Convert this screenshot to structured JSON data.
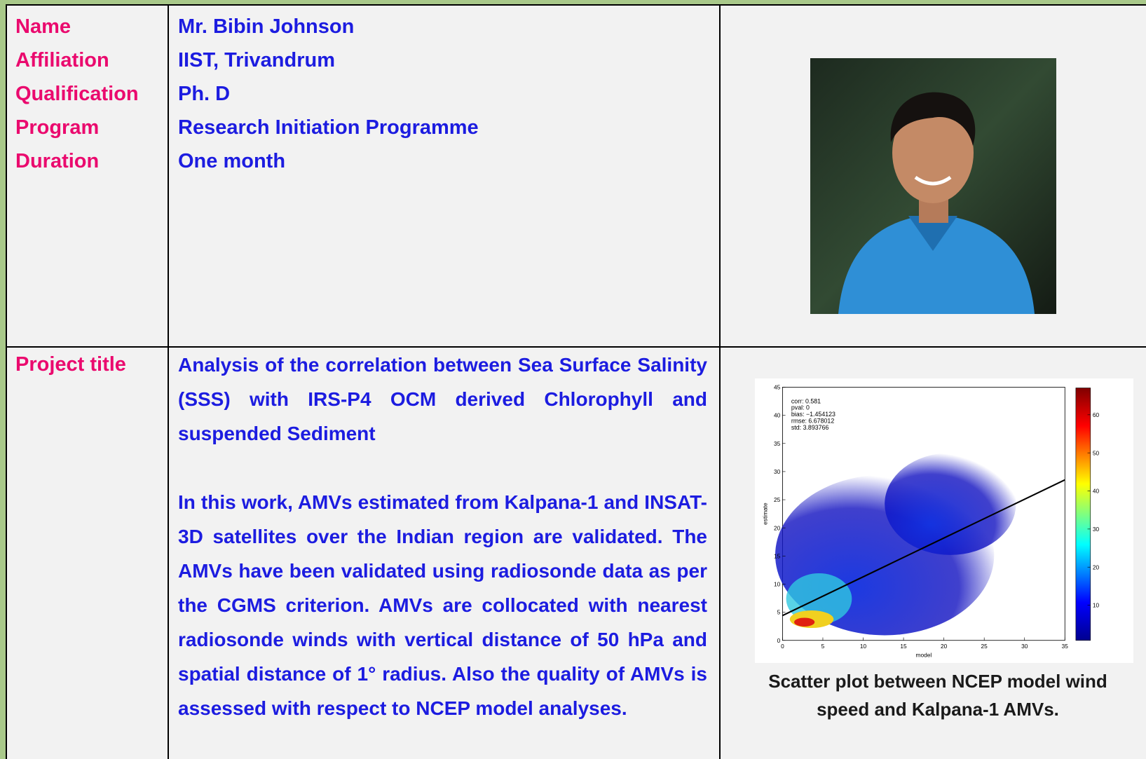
{
  "profile": {
    "labels": [
      "Name",
      "Affiliation",
      "Qualification",
      "Program",
      "Duration"
    ],
    "values": [
      "Mr. Bibin Johnson",
      "IIST, Trivandrum",
      "Ph. D",
      "Research Initiation Programme",
      "One month"
    ]
  },
  "project": {
    "label": "Project title",
    "title": "Analysis of the correlation between Sea Surface Salinity (SSS) with IRS-P4 OCM derived Chlorophyll and suspended Sediment",
    "description": "In this work, AMVs estimated from Kalpana-1 and INSAT-3D satellites over the Indian region are validated. The AMVs have been validated using radiosonde data as per the CGMS criterion. AMVs are collocated with nearest radiosonde winds with vertical distance of 50 hPa and spatial distance of 1° radius. Also the quality of AMVs is assessed with respect to NCEP model analyses.",
    "figure": {
      "stats": [
        "corr: 0.581",
        "pval: 0",
        "bias: −1.454123",
        "rmse: 6.678012",
        "std: 3.893766"
      ],
      "x_label": "model",
      "y_label": "estimate",
      "xticks": [
        0,
        5,
        10,
        15,
        20,
        25,
        30,
        35
      ],
      "yticks": [
        0,
        5,
        10,
        15,
        20,
        25,
        30,
        35,
        40,
        45
      ],
      "colorbar_ticks": [
        10,
        20,
        30,
        40,
        50,
        60
      ],
      "caption": "Scatter plot between NCEP model wind speed and Kalpana-1 AMVs."
    }
  }
}
